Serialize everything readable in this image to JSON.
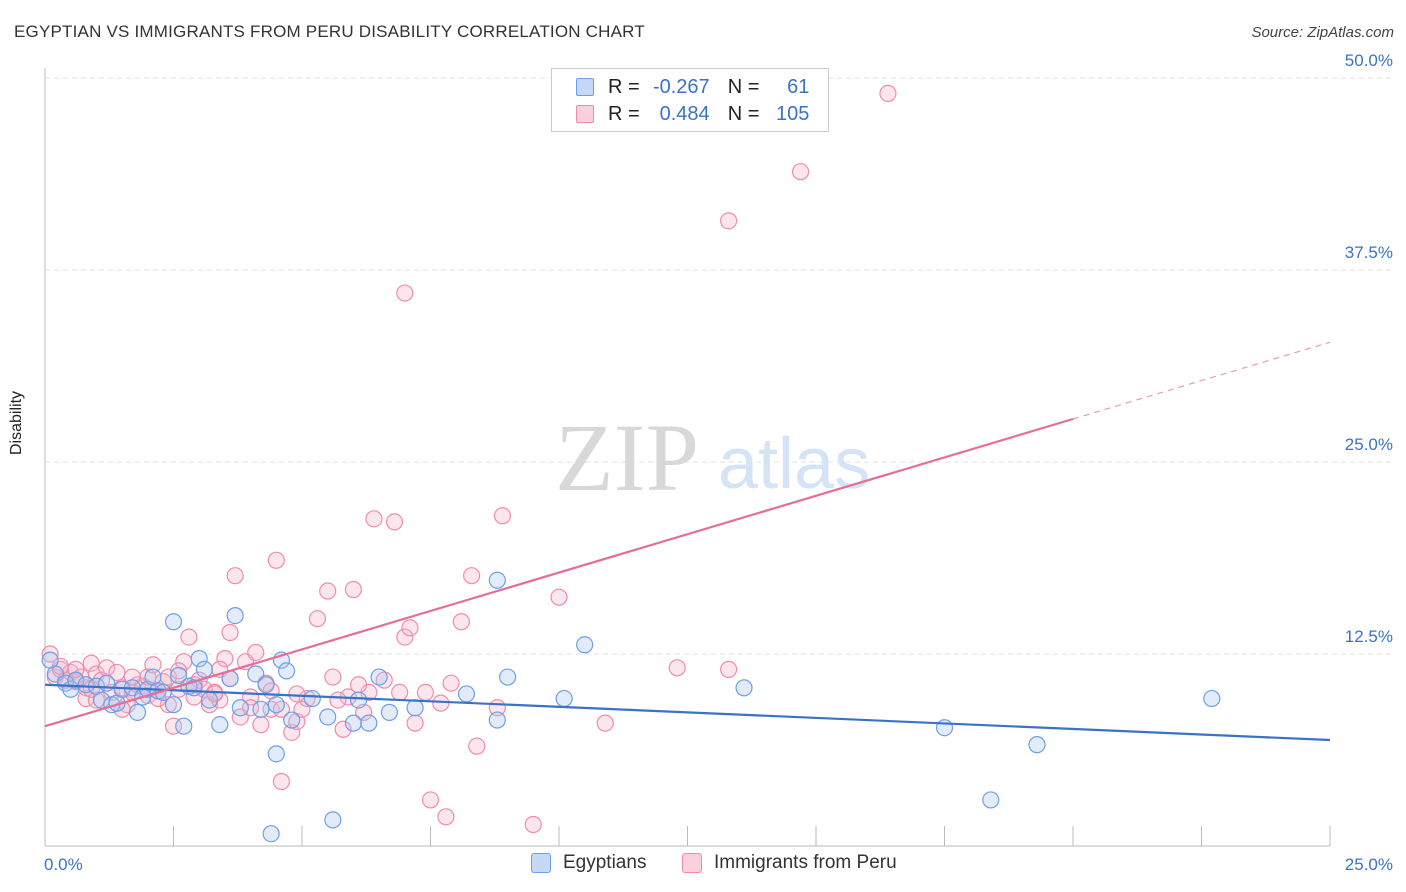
{
  "header": {
    "title": "EGYPTIAN VS IMMIGRANTS FROM PERU DISABILITY CORRELATION CHART",
    "source": "Source: ZipAtlas.com"
  },
  "watermark": {
    "zip": "ZIP",
    "atlas": "atlas"
  },
  "legend": {
    "r_label": "R =",
    "n_label": "N =",
    "rows": [
      {
        "r": "-0.267",
        "n": "61",
        "color": "#6f9ee8"
      },
      {
        "r": "0.484",
        "n": "105",
        "color": "#f08caa"
      }
    ]
  },
  "bottom_legend": [
    {
      "label": "Egyptians",
      "color": "#6f9ee8"
    },
    {
      "label": "Immigrants from Peru",
      "color": "#f08caa"
    }
  ],
  "chart_data": {
    "type": "scatter",
    "title": "EGYPTIAN VS IMMIGRANTS FROM PERU DISABILITY CORRELATION CHART",
    "xlabel": "",
    "ylabel": "Disability",
    "xlim": [
      0,
      25
    ],
    "ylim": [
      0,
      50
    ],
    "x_tick_labels": [
      "0.0%",
      "25.0%"
    ],
    "y_ticks": [
      12.5,
      25.0,
      37.5,
      50.0
    ],
    "y_tick_labels": [
      "12.5%",
      "25.0%",
      "37.5%",
      "50.0%"
    ],
    "colors": {
      "egyptians": "#3a72c8",
      "peru": "#e46e99"
    },
    "series": [
      {
        "name": "Egyptians",
        "color": "#6f9ee8",
        "trend": {
          "x": [
            0,
            25
          ],
          "y": [
            10.5,
            6.9
          ]
        },
        "points": [
          [
            0.2,
            11.2
          ],
          [
            0.4,
            10.6
          ],
          [
            0.5,
            10.2
          ],
          [
            0.6,
            10.8
          ],
          [
            0.8,
            10.5
          ],
          [
            1.0,
            10.4
          ],
          [
            1.1,
            9.5
          ],
          [
            1.2,
            10.6
          ],
          [
            1.3,
            9.2
          ],
          [
            1.4,
            9.3
          ],
          [
            1.5,
            10.2
          ],
          [
            1.7,
            10.3
          ],
          [
            1.8,
            8.7
          ],
          [
            1.9,
            9.7
          ],
          [
            2.0,
            10.2
          ],
          [
            2.1,
            11.0
          ],
          [
            2.2,
            10.1
          ],
          [
            2.3,
            10.0
          ],
          [
            2.5,
            9.2
          ],
          [
            2.5,
            14.6
          ],
          [
            2.6,
            11.1
          ],
          [
            2.7,
            7.8
          ],
          [
            2.8,
            10.4
          ],
          [
            2.9,
            10.3
          ],
          [
            3.0,
            12.2
          ],
          [
            3.1,
            11.5
          ],
          [
            3.2,
            9.5
          ],
          [
            3.4,
            7.9
          ],
          [
            3.6,
            10.9
          ],
          [
            3.7,
            15.0
          ],
          [
            3.8,
            9.0
          ],
          [
            4.1,
            11.2
          ],
          [
            4.2,
            8.9
          ],
          [
            4.3,
            10.5
          ],
          [
            4.4,
            0.8
          ],
          [
            4.5,
            9.2
          ],
          [
            4.5,
            6.0
          ],
          [
            4.6,
            12.1
          ],
          [
            4.7,
            11.4
          ],
          [
            4.8,
            8.2
          ],
          [
            5.2,
            9.6
          ],
          [
            5.5,
            8.4
          ],
          [
            5.6,
            1.7
          ],
          [
            6.0,
            8.0
          ],
          [
            6.1,
            9.5
          ],
          [
            6.3,
            8.0
          ],
          [
            6.5,
            11.0
          ],
          [
            6.7,
            8.7
          ],
          [
            7.2,
            9.0
          ],
          [
            8.2,
            9.9
          ],
          [
            8.8,
            8.2
          ],
          [
            8.8,
            17.3
          ],
          [
            9.0,
            11.0
          ],
          [
            10.1,
            9.6
          ],
          [
            10.5,
            13.1
          ],
          [
            13.6,
            10.3
          ],
          [
            17.5,
            7.7
          ],
          [
            18.4,
            3.0
          ],
          [
            19.3,
            6.6
          ],
          [
            22.7,
            9.6
          ],
          [
            0.1,
            12.1
          ]
        ]
      },
      {
        "name": "Immigrants from Peru",
        "color": "#f08caa",
        "trend": {
          "x": [
            0,
            20
          ],
          "y": [
            7.8,
            27.8
          ]
        },
        "trend_dashed": {
          "x": [
            20,
            25
          ],
          "y": [
            27.8,
            32.8
          ]
        },
        "points": [
          [
            0.1,
            12.5
          ],
          [
            0.2,
            11.0
          ],
          [
            0.3,
            11.5
          ],
          [
            0.4,
            10.8
          ],
          [
            0.5,
            11.3
          ],
          [
            0.6,
            10.7
          ],
          [
            0.7,
            11.0
          ],
          [
            0.8,
            10.3
          ],
          [
            0.8,
            9.6
          ],
          [
            0.9,
            11.9
          ],
          [
            1.0,
            11.2
          ],
          [
            1.1,
            10.8
          ],
          [
            1.2,
            11.6
          ],
          [
            1.3,
            10.0
          ],
          [
            1.4,
            11.3
          ],
          [
            1.5,
            10.3
          ],
          [
            1.6,
            9.2
          ],
          [
            1.7,
            10.0
          ],
          [
            1.8,
            10.5
          ],
          [
            1.9,
            10.4
          ],
          [
            2.0,
            11.0
          ],
          [
            2.1,
            11.8
          ],
          [
            2.2,
            10.1
          ],
          [
            2.3,
            10.7
          ],
          [
            2.4,
            9.2
          ],
          [
            2.5,
            7.8
          ],
          [
            2.6,
            10.2
          ],
          [
            2.7,
            12.0
          ],
          [
            2.8,
            13.6
          ],
          [
            2.9,
            9.7
          ],
          [
            3.0,
            10.8
          ],
          [
            3.1,
            10.2
          ],
          [
            3.2,
            9.2
          ],
          [
            3.3,
            10.0
          ],
          [
            3.4,
            9.5
          ],
          [
            3.5,
            12.2
          ],
          [
            3.6,
            13.9
          ],
          [
            3.7,
            17.6
          ],
          [
            3.8,
            8.4
          ],
          [
            3.9,
            12.0
          ],
          [
            4.0,
            9.7
          ],
          [
            4.1,
            12.6
          ],
          [
            4.2,
            7.9
          ],
          [
            4.3,
            10.6
          ],
          [
            4.4,
            8.9
          ],
          [
            4.5,
            18.6
          ],
          [
            4.6,
            8.9
          ],
          [
            4.6,
            4.2
          ],
          [
            4.8,
            7.4
          ],
          [
            4.9,
            8.1
          ],
          [
            5.0,
            8.9
          ],
          [
            5.1,
            9.6
          ],
          [
            5.3,
            14.8
          ],
          [
            5.5,
            16.6
          ],
          [
            5.6,
            11.0
          ],
          [
            5.8,
            7.6
          ],
          [
            5.9,
            9.7
          ],
          [
            6.0,
            16.7
          ],
          [
            6.2,
            8.7
          ],
          [
            6.3,
            10.0
          ],
          [
            6.4,
            21.3
          ],
          [
            6.8,
            21.1
          ],
          [
            6.9,
            10.0
          ],
          [
            7.0,
            13.6
          ],
          [
            7.0,
            36.0
          ],
          [
            7.1,
            14.2
          ],
          [
            7.2,
            8.0
          ],
          [
            7.4,
            10.0
          ],
          [
            7.5,
            3.0
          ],
          [
            7.8,
            1.9
          ],
          [
            7.9,
            10.6
          ],
          [
            8.1,
            14.6
          ],
          [
            8.3,
            17.6
          ],
          [
            8.4,
            6.5
          ],
          [
            8.8,
            9.0
          ],
          [
            8.9,
            21.5
          ],
          [
            9.5,
            1.4
          ],
          [
            10.0,
            16.2
          ],
          [
            10.9,
            8.0
          ],
          [
            12.3,
            11.6
          ],
          [
            13.3,
            11.5
          ],
          [
            13.3,
            40.7
          ],
          [
            14.7,
            43.9
          ],
          [
            16.4,
            49.0
          ],
          [
            0.3,
            11.7
          ],
          [
            1.0,
            9.5
          ],
          [
            2.4,
            11.0
          ],
          [
            3.4,
            11.5
          ],
          [
            4.0,
            9.0
          ],
          [
            5.7,
            9.5
          ],
          [
            6.1,
            10.5
          ],
          [
            6.6,
            10.8
          ],
          [
            7.7,
            9.3
          ],
          [
            1.5,
            8.9
          ],
          [
            2.0,
            9.8
          ],
          [
            2.9,
            10.5
          ],
          [
            3.6,
            10.9
          ],
          [
            4.4,
            10.1
          ],
          [
            4.9,
            9.9
          ],
          [
            0.6,
            11.5
          ],
          [
            0.9,
            10.2
          ],
          [
            1.7,
            11.0
          ],
          [
            2.2,
            9.6
          ],
          [
            2.6,
            11.4
          ],
          [
            3.3,
            9.9
          ]
        ]
      }
    ]
  }
}
